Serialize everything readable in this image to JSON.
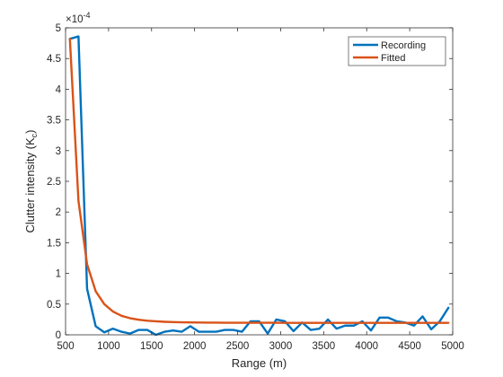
{
  "chart_data": {
    "type": "line",
    "xlabel": "Range (m)",
    "ylabel": "Clutter  intensity  (K",
    "ylabel_sub": "c",
    "ylabel_close": ")",
    "exponent_label": "×10",
    "exponent_power": "-4",
    "xlim": [
      500,
      5000
    ],
    "ylim": [
      0,
      5
    ],
    "y_scale_factor": 0.0001,
    "xticks": [
      500,
      1000,
      1500,
      2000,
      2500,
      3000,
      3500,
      4000,
      4500,
      5000
    ],
    "yticks": [
      0,
      0.5,
      1,
      1.5,
      2,
      2.5,
      3,
      3.5,
      4,
      4.5,
      5
    ],
    "xtick_labels": [
      "500",
      "1000",
      "1500",
      "2000",
      "2500",
      "3000",
      "3500",
      "4000",
      "4500",
      "5000"
    ],
    "ytick_labels": [
      "0",
      "0.5",
      "1",
      "1.5",
      "2",
      "2.5",
      "3",
      "3.5",
      "4",
      "4.5",
      "5"
    ],
    "grid": false,
    "legend_position": "top-right",
    "series": [
      {
        "name": "Recording",
        "color": "#0072BD",
        "x": [
          550,
          650,
          750,
          850,
          950,
          1050,
          1150,
          1250,
          1350,
          1450,
          1550,
          1650,
          1750,
          1850,
          1950,
          2050,
          2150,
          2250,
          2350,
          2450,
          2550,
          2650,
          2750,
          2850,
          2950,
          3050,
          3150,
          3250,
          3350,
          3450,
          3550,
          3650,
          3750,
          3850,
          3950,
          4050,
          4150,
          4250,
          4350,
          4450,
          4550,
          4650,
          4750,
          4850,
          4950
        ],
        "values": [
          4.82,
          4.86,
          0.75,
          0.14,
          0.04,
          0.1,
          0.05,
          0.02,
          0.08,
          0.08,
          0.0,
          0.05,
          0.07,
          0.05,
          0.14,
          0.05,
          0.05,
          0.05,
          0.08,
          0.08,
          0.05,
          0.22,
          0.22,
          0.02,
          0.25,
          0.22,
          0.06,
          0.2,
          0.08,
          0.1,
          0.25,
          0.1,
          0.15,
          0.15,
          0.22,
          0.07,
          0.28,
          0.28,
          0.22,
          0.2,
          0.15,
          0.3,
          0.09,
          0.22,
          0.44
        ]
      },
      {
        "name": "Fitted",
        "color": "#D95319",
        "x": [
          550,
          650,
          750,
          850,
          950,
          1050,
          1150,
          1250,
          1350,
          1450,
          1550,
          1650,
          1750,
          1850,
          1950,
          2050,
          2150,
          2250,
          2350,
          2450,
          2550,
          2650,
          2750,
          2850,
          2950,
          3050,
          3150,
          3250,
          3350,
          3450,
          3550,
          3650,
          3750,
          3850,
          3950,
          4050,
          4150,
          4250,
          4350,
          4450,
          4550,
          4650,
          4750,
          4850,
          4950
        ],
        "values": [
          4.82,
          2.18,
          1.15,
          0.71,
          0.5,
          0.38,
          0.31,
          0.27,
          0.245,
          0.23,
          0.22,
          0.212,
          0.207,
          0.204,
          0.202,
          0.2,
          0.199,
          0.198,
          0.197,
          0.197,
          0.196,
          0.196,
          0.196,
          0.196,
          0.196,
          0.195,
          0.195,
          0.195,
          0.195,
          0.195,
          0.195,
          0.195,
          0.195,
          0.195,
          0.195,
          0.195,
          0.195,
          0.195,
          0.195,
          0.195,
          0.195,
          0.195,
          0.195,
          0.195,
          0.195
        ]
      }
    ]
  }
}
